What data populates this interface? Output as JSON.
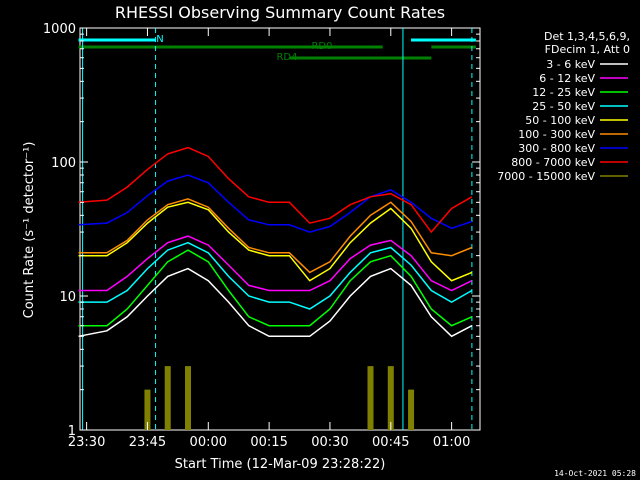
{
  "chart_data": {
    "type": "line",
    "title": "RHESSI Observing Summary Count Rates",
    "xlabel": "Start Time (12-Mar-09 23:28:22)",
    "ylabel": "Count Rate (s⁻¹ detector⁻¹)",
    "y_scale": "log",
    "ylim": [
      1,
      1000
    ],
    "xlim": [
      "23:28:22",
      "01:07:00"
    ],
    "x_ticks": [
      "23:30",
      "23:45",
      "00:00",
      "00:15",
      "00:30",
      "00:45",
      "01:00"
    ],
    "y_ticks": [
      "1",
      "10",
      "100",
      "1000"
    ],
    "legend": {
      "placement": "right",
      "header": [
        "Det 1,3,4,5,6,9,",
        "FDecim 1, Att 0"
      ]
    },
    "grid": false,
    "series": [
      {
        "name": "3 - 6 keV",
        "color": "#ffffff",
        "x": [
          "23:28",
          "23:35",
          "23:40",
          "23:45",
          "23:50",
          "23:55",
          "00:00",
          "00:05",
          "00:10",
          "00:15",
          "00:20",
          "00:25",
          "00:30",
          "00:35",
          "00:40",
          "00:45",
          "00:50",
          "00:55",
          "01:00",
          "01:05"
        ],
        "y": [
          5,
          5.5,
          7,
          10,
          14,
          16,
          13,
          9,
          6,
          5,
          5,
          5,
          6.5,
          10,
          14,
          16,
          12,
          7,
          5,
          6
        ]
      },
      {
        "name": "6 - 12 keV",
        "color": "#ff00ff",
        "x": [
          "23:28",
          "23:35",
          "23:40",
          "23:45",
          "23:50",
          "23:55",
          "00:00",
          "00:05",
          "00:10",
          "00:15",
          "00:20",
          "00:25",
          "00:30",
          "00:35",
          "00:40",
          "00:45",
          "00:50",
          "00:55",
          "01:00",
          "01:05"
        ],
        "y": [
          11,
          11,
          14,
          19,
          25,
          28,
          24,
          17,
          12,
          11,
          11,
          11,
          13,
          19,
          24,
          26,
          20,
          13,
          11,
          13
        ]
      },
      {
        "name": "12 - 25 keV",
        "color": "#00ff00",
        "x": [
          "23:28",
          "23:35",
          "23:40",
          "23:45",
          "23:50",
          "23:55",
          "00:00",
          "00:05",
          "00:10",
          "00:15",
          "00:20",
          "00:25",
          "00:30",
          "00:35",
          "00:40",
          "00:45",
          "00:50",
          "00:55",
          "01:00",
          "01:05"
        ],
        "y": [
          6,
          6,
          8,
          12,
          18,
          22,
          18,
          11,
          7,
          6,
          6,
          6,
          8,
          13,
          18,
          20,
          14,
          8,
          6,
          7
        ]
      },
      {
        "name": "25 - 50 keV",
        "color": "#00ffff",
        "x": [
          "23:28",
          "23:35",
          "23:40",
          "23:45",
          "23:50",
          "23:55",
          "00:00",
          "00:05",
          "00:10",
          "00:15",
          "00:20",
          "00:25",
          "00:30",
          "00:35",
          "00:40",
          "00:45",
          "00:50",
          "00:55",
          "01:00",
          "01:05"
        ],
        "y": [
          9,
          9,
          11,
          16,
          22,
          25,
          21,
          14,
          10,
          9,
          9,
          8,
          10,
          15,
          21,
          23,
          17,
          11,
          9,
          11
        ]
      },
      {
        "name": "50 - 100 keV",
        "color": "#ffff00",
        "x": [
          "23:28",
          "23:35",
          "23:40",
          "23:45",
          "23:50",
          "23:55",
          "00:00",
          "00:05",
          "00:10",
          "00:15",
          "00:20",
          "00:25",
          "00:30",
          "00:35",
          "00:40",
          "00:45",
          "00:50",
          "00:55",
          "01:00",
          "01:05"
        ],
        "y": [
          20,
          20,
          25,
          35,
          46,
          50,
          44,
          30,
          22,
          20,
          20,
          13,
          16,
          25,
          35,
          45,
          32,
          18,
          13,
          15
        ]
      },
      {
        "name": "100 - 300 keV",
        "color": "#ff8c00",
        "x": [
          "23:28",
          "23:35",
          "23:40",
          "23:45",
          "23:50",
          "23:55",
          "00:00",
          "00:05",
          "00:10",
          "00:15",
          "00:20",
          "00:25",
          "00:30",
          "00:35",
          "00:40",
          "00:45",
          "00:50",
          "00:55",
          "01:00",
          "01:05"
        ],
        "y": [
          21,
          21,
          26,
          37,
          48,
          53,
          46,
          32,
          23,
          21,
          21,
          15,
          18,
          28,
          40,
          50,
          36,
          21,
          20,
          23
        ]
      },
      {
        "name": "300 - 800 keV",
        "color": "#0000ff",
        "x": [
          "23:28",
          "23:35",
          "23:40",
          "23:45",
          "23:50",
          "23:55",
          "00:00",
          "00:05",
          "00:10",
          "00:15",
          "00:20",
          "00:25",
          "00:30",
          "00:35",
          "00:40",
          "00:45",
          "00:50",
          "00:55",
          "01:00",
          "01:05"
        ],
        "y": [
          34,
          35,
          42,
          56,
          72,
          80,
          70,
          50,
          37,
          34,
          34,
          30,
          33,
          42,
          55,
          62,
          50,
          38,
          32,
          36
        ]
      },
      {
        "name": "800 - 7000 keV",
        "color": "#ff0000",
        "x": [
          "23:28",
          "23:35",
          "23:40",
          "23:45",
          "23:50",
          "23:55",
          "00:00",
          "00:05",
          "00:10",
          "00:15",
          "00:20",
          "00:25",
          "00:30",
          "00:35",
          "00:40",
          "00:45",
          "00:50",
          "00:55",
          "01:00",
          "01:05"
        ],
        "y": [
          50,
          52,
          65,
          88,
          115,
          128,
          110,
          75,
          55,
          50,
          50,
          35,
          38,
          48,
          55,
          58,
          48,
          30,
          45,
          55
        ]
      },
      {
        "name": "7000 - 15000 keV",
        "color": "#808000",
        "x": [
          "23:28",
          "23:35",
          "23:40",
          "23:45",
          "23:50",
          "23:55",
          "00:00",
          "00:05",
          "00:10",
          "00:15",
          "00:20",
          "00:25",
          "00:30",
          "00:35",
          "00:40",
          "00:45",
          "00:50",
          "00:55",
          "01:00",
          "01:05"
        ],
        "y": [
          null,
          null,
          1,
          2,
          3,
          3,
          null,
          null,
          null,
          null,
          null,
          null,
          null,
          1,
          3,
          3,
          2,
          null,
          null,
          null
        ]
      }
    ],
    "flags": [
      {
        "label": "N",
        "color": "#00ffff",
        "segments": [
          [
            "23:28",
            "23:47"
          ],
          [
            "00:50",
            "01:06"
          ]
        ]
      },
      {
        "label": "RD0",
        "color": "#008000",
        "segments": [
          [
            "23:28",
            "00:43"
          ],
          [
            "00:55",
            "01:06"
          ]
        ]
      },
      {
        "label": "RD4",
        "color": "#008000",
        "segments": [
          [
            "00:20",
            "00:55"
          ]
        ]
      }
    ],
    "markers": [
      {
        "type": "solid",
        "color": "#00ffff",
        "x": "23:29"
      },
      {
        "type": "dashed",
        "color": "#00ffff",
        "x": "23:47"
      },
      {
        "type": "solid",
        "color": "#00ffff",
        "x": "00:48"
      },
      {
        "type": "dashed",
        "color": "#00ffff",
        "x": "01:05"
      }
    ]
  },
  "footer": {
    "date_stamp": "14-Oct-2021 05:28"
  }
}
